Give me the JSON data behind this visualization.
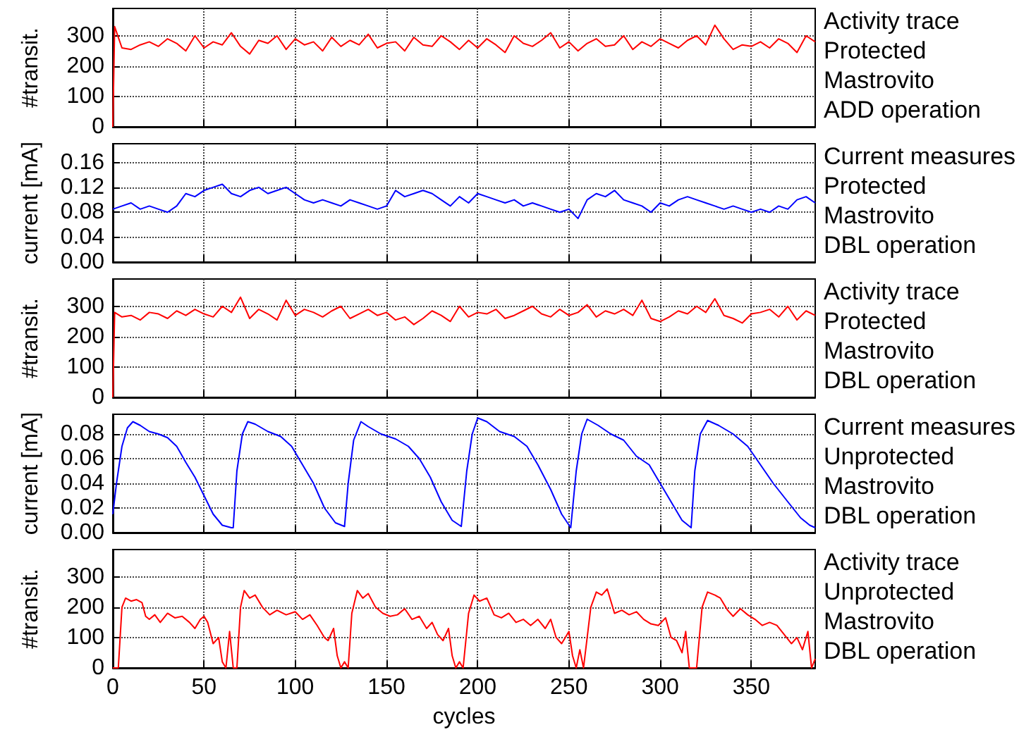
{
  "chart_data": [
    {
      "type": "line",
      "ylabel": "#transit.",
      "annotations": [
        "Activity trace",
        "Protected",
        "Mastrovito",
        "ADD operation"
      ],
      "xlim": [
        0,
        385
      ],
      "xticks": [
        0,
        50,
        100,
        150,
        200,
        250,
        300,
        350
      ],
      "ylim": [
        0,
        390
      ],
      "yticks": [
        0,
        100,
        200,
        300
      ],
      "grid": true,
      "tick_labels": "y",
      "series": [
        {
          "color": "#ff0000",
          "x": [
            0,
            1,
            5,
            10,
            15,
            20,
            25,
            30,
            35,
            40,
            45,
            50,
            55,
            60,
            65,
            70,
            75,
            80,
            85,
            90,
            95,
            100,
            105,
            110,
            115,
            120,
            125,
            130,
            135,
            140,
            145,
            150,
            155,
            160,
            165,
            170,
            175,
            180,
            185,
            190,
            195,
            200,
            205,
            210,
            215,
            220,
            225,
            230,
            235,
            240,
            245,
            250,
            255,
            260,
            265,
            270,
            275,
            280,
            285,
            290,
            295,
            300,
            305,
            310,
            315,
            320,
            325,
            330,
            335,
            340,
            345,
            350,
            355,
            360,
            365,
            370,
            375,
            380,
            385
          ],
          "values": [
            0,
            330,
            260,
            255,
            270,
            280,
            265,
            290,
            275,
            250,
            300,
            260,
            280,
            270,
            310,
            265,
            240,
            285,
            275,
            300,
            255,
            290,
            270,
            280,
            250,
            295,
            265,
            285,
            270,
            305,
            260,
            275,
            280,
            250,
            295,
            270,
            265,
            300,
            280,
            255,
            285,
            260,
            290,
            270,
            245,
            300,
            275,
            265,
            285,
            310,
            260,
            280,
            250,
            275,
            290,
            265,
            270,
            300,
            255,
            280,
            265,
            290,
            275,
            260,
            285,
            300,
            270,
            335,
            290,
            255,
            270,
            265,
            280,
            260,
            290,
            275,
            245,
            300,
            280
          ]
        }
      ]
    },
    {
      "type": "line",
      "ylabel": "current [mA]",
      "annotations": [
        "Current measures",
        "Protected",
        "Mastrovito",
        "DBL operation"
      ],
      "xlim": [
        0,
        385
      ],
      "xticks": [
        0,
        50,
        100,
        150,
        200,
        250,
        300,
        350
      ],
      "ylim": [
        0,
        0.19
      ],
      "yticks": [
        {
          "value": 0,
          "label": "0.00"
        },
        {
          "value": 0.04,
          "label": "0.04"
        },
        {
          "value": 0.08,
          "label": "0.08"
        },
        {
          "value": 0.12,
          "label": "0.12"
        },
        {
          "value": 0.16,
          "label": "0.16"
        }
      ],
      "grid": true,
      "tick_labels": "y",
      "series": [
        {
          "color": "#0000ff",
          "x": [
            0,
            5,
            10,
            15,
            20,
            25,
            30,
            35,
            40,
            45,
            50,
            55,
            60,
            65,
            70,
            75,
            80,
            85,
            90,
            95,
            100,
            105,
            110,
            115,
            120,
            125,
            130,
            135,
            140,
            145,
            150,
            155,
            160,
            165,
            170,
            175,
            180,
            185,
            190,
            195,
            200,
            205,
            210,
            215,
            220,
            225,
            230,
            235,
            240,
            245,
            250,
            255,
            260,
            265,
            270,
            275,
            280,
            285,
            290,
            295,
            300,
            305,
            310,
            315,
            320,
            325,
            330,
            335,
            340,
            345,
            350,
            355,
            360,
            365,
            370,
            375,
            380,
            385
          ],
          "values": [
            0.085,
            0.09,
            0.095,
            0.085,
            0.09,
            0.085,
            0.08,
            0.09,
            0.11,
            0.105,
            0.115,
            0.12,
            0.125,
            0.11,
            0.105,
            0.115,
            0.12,
            0.11,
            0.115,
            0.12,
            0.11,
            0.1,
            0.095,
            0.1,
            0.095,
            0.09,
            0.1,
            0.095,
            0.09,
            0.085,
            0.09,
            0.115,
            0.105,
            0.11,
            0.115,
            0.11,
            0.1,
            0.09,
            0.105,
            0.095,
            0.11,
            0.105,
            0.1,
            0.095,
            0.1,
            0.09,
            0.095,
            0.09,
            0.085,
            0.08,
            0.085,
            0.07,
            0.1,
            0.11,
            0.105,
            0.115,
            0.1,
            0.095,
            0.09,
            0.08,
            0.095,
            0.09,
            0.1,
            0.105,
            0.1,
            0.095,
            0.09,
            0.085,
            0.09,
            0.085,
            0.08,
            0.085,
            0.08,
            0.09,
            0.085,
            0.1,
            0.105,
            0.095
          ]
        }
      ]
    },
    {
      "type": "line",
      "ylabel": "#transit.",
      "annotations": [
        "Activity trace",
        "Protected",
        "Mastrovito",
        "DBL operation"
      ],
      "xlim": [
        0,
        385
      ],
      "xticks": [
        0,
        50,
        100,
        150,
        200,
        250,
        300,
        350
      ],
      "ylim": [
        0,
        390
      ],
      "yticks": [
        0,
        100,
        200,
        300
      ],
      "grid": true,
      "tick_labels": "y",
      "series": [
        {
          "color": "#ff0000",
          "x": [
            0,
            1,
            5,
            10,
            15,
            20,
            25,
            30,
            35,
            40,
            45,
            50,
            55,
            60,
            65,
            70,
            75,
            80,
            85,
            90,
            95,
            100,
            105,
            110,
            115,
            120,
            125,
            130,
            135,
            140,
            145,
            150,
            155,
            160,
            165,
            170,
            175,
            180,
            185,
            190,
            195,
            200,
            205,
            210,
            215,
            220,
            225,
            230,
            235,
            240,
            245,
            250,
            255,
            260,
            265,
            270,
            275,
            280,
            285,
            290,
            295,
            300,
            305,
            310,
            315,
            320,
            325,
            330,
            335,
            340,
            345,
            350,
            355,
            360,
            365,
            370,
            375,
            380,
            385
          ],
          "values": [
            0,
            280,
            265,
            270,
            255,
            280,
            275,
            260,
            285,
            270,
            290,
            275,
            265,
            300,
            280,
            330,
            260,
            290,
            275,
            255,
            320,
            270,
            290,
            280,
            265,
            285,
            300,
            260,
            275,
            290,
            270,
            280,
            255,
            265,
            240,
            260,
            285,
            270,
            250,
            300,
            265,
            280,
            275,
            290,
            260,
            270,
            285,
            300,
            275,
            265,
            290,
            270,
            280,
            305,
            265,
            285,
            275,
            290,
            270,
            320,
            260,
            250,
            265,
            285,
            275,
            300,
            280,
            325,
            270,
            260,
            245,
            275,
            280,
            290,
            265,
            300,
            255,
            285,
            270
          ]
        }
      ]
    },
    {
      "type": "line",
      "ylabel": "current [mA]",
      "annotations": [
        "Current measures",
        "Unprotected",
        "Mastrovito",
        "DBL operation"
      ],
      "xlim": [
        0,
        385
      ],
      "xticks": [
        0,
        50,
        100,
        150,
        200,
        250,
        300,
        350
      ],
      "ylim": [
        0,
        0.096
      ],
      "yticks": [
        {
          "value": 0,
          "label": "0.00"
        },
        {
          "value": 0.02,
          "label": "0.02"
        },
        {
          "value": 0.04,
          "label": "0.04"
        },
        {
          "value": 0.06,
          "label": "0.06"
        },
        {
          "value": 0.08,
          "label": "0.08"
        }
      ],
      "grid": true,
      "tick_labels": "y",
      "series": [
        {
          "color": "#0000ff",
          "x": [
            0,
            2,
            5,
            8,
            11,
            15,
            20,
            25,
            30,
            35,
            40,
            45,
            50,
            55,
            60,
            65,
            66,
            68,
            71,
            74,
            78,
            85,
            92,
            98,
            104,
            110,
            116,
            122,
            127,
            129,
            132,
            136,
            140,
            147,
            155,
            162,
            168,
            174,
            180,
            186,
            191,
            194,
            197,
            200,
            205,
            212,
            220,
            227,
            233,
            240,
            246,
            251,
            254,
            257,
            260,
            266,
            273,
            280,
            287,
            294,
            300,
            306,
            312,
            317,
            319,
            322,
            326,
            332,
            340,
            348,
            355,
            362,
            370,
            377,
            382,
            385
          ],
          "values": [
            0.015,
            0.04,
            0.07,
            0.085,
            0.09,
            0.087,
            0.082,
            0.08,
            0.077,
            0.07,
            0.057,
            0.045,
            0.03,
            0.015,
            0.006,
            0.004,
            0.004,
            0.05,
            0.08,
            0.09,
            0.088,
            0.082,
            0.078,
            0.07,
            0.055,
            0.04,
            0.02,
            0.008,
            0.005,
            0.04,
            0.075,
            0.09,
            0.086,
            0.08,
            0.076,
            0.07,
            0.06,
            0.045,
            0.025,
            0.01,
            0.005,
            0.05,
            0.08,
            0.093,
            0.09,
            0.082,
            0.078,
            0.07,
            0.055,
            0.035,
            0.015,
            0.004,
            0.05,
            0.08,
            0.092,
            0.087,
            0.08,
            0.075,
            0.062,
            0.055,
            0.04,
            0.025,
            0.01,
            0.004,
            0.05,
            0.08,
            0.091,
            0.087,
            0.08,
            0.07,
            0.055,
            0.04,
            0.025,
            0.012,
            0.006,
            0.004
          ]
        }
      ]
    },
    {
      "type": "line",
      "ylabel": "#transit.",
      "xlabel": "cycles",
      "annotations": [
        "Activity trace",
        "Unprotected",
        "Mastrovito",
        "DBL operation"
      ],
      "xlim": [
        0,
        385
      ],
      "xticks": [
        0,
        50,
        100,
        150,
        200,
        250,
        300,
        350
      ],
      "ylim": [
        0,
        390
      ],
      "yticks": [
        0,
        100,
        200,
        300
      ],
      "grid": true,
      "series": [
        {
          "color": "#ff0000",
          "x": [
            0,
            3,
            5,
            7,
            10,
            13,
            16,
            18,
            20,
            23,
            26,
            30,
            34,
            38,
            42,
            45,
            48,
            50,
            52,
            55,
            58,
            60,
            62,
            64,
            66,
            68,
            70,
            72,
            75,
            78,
            82,
            86,
            90,
            95,
            100,
            104,
            108,
            112,
            116,
            118,
            121,
            123,
            125,
            127,
            129,
            131,
            134,
            137,
            140,
            144,
            148,
            152,
            156,
            160,
            164,
            168,
            172,
            175,
            178,
            181,
            184,
            186,
            188,
            190,
            192,
            195,
            198,
            201,
            205,
            209,
            213,
            217,
            221,
            225,
            229,
            233,
            237,
            240,
            243,
            246,
            248,
            250,
            252,
            254,
            256,
            258,
            262,
            265,
            268,
            271,
            275,
            279,
            283,
            287,
            291,
            295,
            299,
            303,
            306,
            309,
            312,
            314,
            316,
            320,
            323,
            326,
            330,
            333,
            337,
            340,
            344,
            348,
            352,
            356,
            360,
            364,
            368,
            372,
            375,
            378,
            381,
            383,
            385
          ],
          "values": [
            0,
            0,
            200,
            230,
            220,
            225,
            215,
            170,
            160,
            175,
            150,
            180,
            165,
            170,
            150,
            130,
            160,
            170,
            150,
            80,
            100,
            20,
            0,
            120,
            0,
            0,
            200,
            255,
            230,
            240,
            200,
            175,
            190,
            175,
            185,
            160,
            175,
            140,
            100,
            90,
            130,
            40,
            0,
            20,
            0,
            180,
            255,
            230,
            245,
            200,
            180,
            170,
            175,
            195,
            160,
            170,
            130,
            150,
            110,
            90,
            130,
            40,
            0,
            20,
            0,
            180,
            240,
            220,
            230,
            175,
            165,
            180,
            150,
            160,
            140,
            160,
            130,
            160,
            100,
            80,
            100,
            120,
            40,
            0,
            60,
            0,
            200,
            250,
            240,
            260,
            180,
            190,
            175,
            185,
            160,
            145,
            140,
            165,
            100,
            90,
            50,
            120,
            0,
            0,
            200,
            250,
            240,
            230,
            190,
            170,
            195,
            175,
            160,
            140,
            150,
            140,
            110,
            80,
            100,
            60,
            120,
            0,
            30
          ]
        }
      ]
    }
  ]
}
